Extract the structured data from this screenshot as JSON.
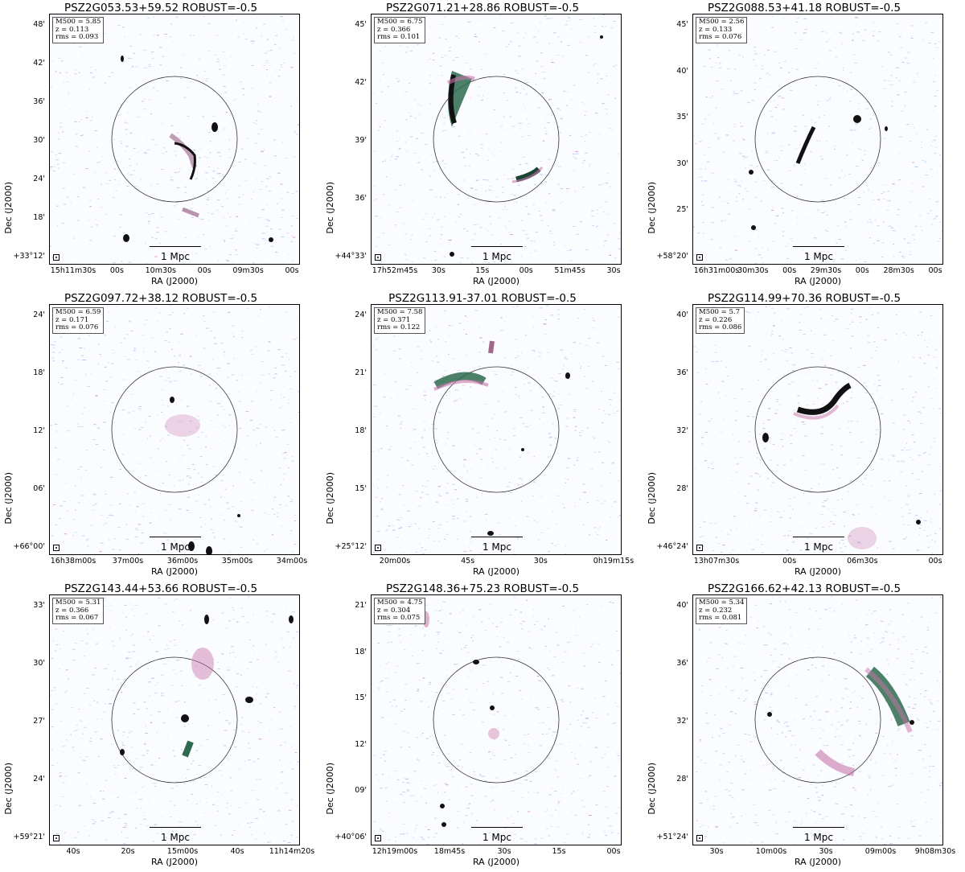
{
  "figure": {
    "common": {
      "xlabel": "RA (J2000)",
      "ylabel": "Dec (J2000)",
      "scalebar": "1 Mpc"
    },
    "panels": [
      {
        "title": "PSZ2G053.53+59.52 ROBUST=-0.5",
        "m500": "M500 = 5.85",
        "z": "z = 0.113",
        "rms": "rms = 0.093",
        "yticks": [
          "48'",
          "42'",
          "36'",
          "30'",
          "24'",
          "18'",
          "+33°12'"
        ],
        "xticks": [
          "15h11m30s",
          "00s",
          "10m30s",
          "00s",
          "09m30s",
          "00s"
        ]
      },
      {
        "title": "PSZ2G071.21+28.86 ROBUST=-0.5",
        "m500": "M500 = 6.75",
        "z": "z = 0.366",
        "rms": "rms = 0.101",
        "yticks": [
          "45'",
          "42'",
          "39'",
          "36'",
          "+44°33'"
        ],
        "xticks": [
          "17h52m45s",
          "30s",
          "15s",
          "00s",
          "51m45s",
          "30s"
        ]
      },
      {
        "title": "PSZ2G088.53+41.18 ROBUST=-0.5",
        "m500": "M500 = 2.56",
        "z": "z = 0.133",
        "rms": "rms = 0.076",
        "yticks": [
          "45'",
          "40'",
          "35'",
          "30'",
          "25'",
          "+58°20'"
        ],
        "xticks": [
          "16h31m00s",
          "30m30s",
          "00s",
          "29m30s",
          "00s",
          "28m30s",
          "00s"
        ]
      },
      {
        "title": "PSZ2G097.72+38.12 ROBUST=-0.5",
        "m500": "M500 = 6.59",
        "z": "z = 0.171",
        "rms": "rms = 0.076",
        "yticks": [
          "24'",
          "18'",
          "12'",
          "06'",
          "+66°00'"
        ],
        "xticks": [
          "16h38m00s",
          "37m00s",
          "36m00s",
          "35m00s",
          "34m00s"
        ]
      },
      {
        "title": "PSZ2G113.91-37.01 ROBUST=-0.5",
        "m500": "M500 = 7.58",
        "z": "z = 0.371",
        "rms": "rms = 0.122",
        "yticks": [
          "24'",
          "21'",
          "18'",
          "15'",
          "+25°12'"
        ],
        "xticks": [
          "20m00s",
          "45s",
          "30s",
          "0h19m15s"
        ]
      },
      {
        "title": "PSZ2G114.99+70.36 ROBUST=-0.5",
        "m500": "M500 = 5.7",
        "z": "z = 0.226",
        "rms": "rms = 0.086",
        "yticks": [
          "40'",
          "36'",
          "32'",
          "28'",
          "+46°24'"
        ],
        "xticks": [
          "13h07m30s",
          "00s",
          "06m30s",
          "00s"
        ]
      },
      {
        "title": "PSZ2G143.44+53.66 ROBUST=-0.5",
        "m500": "M500 = 5.31",
        "z": "z = 0.366",
        "rms": "rms = 0.067",
        "yticks": [
          "33'",
          "30'",
          "27'",
          "24'",
          "+59°21'"
        ],
        "xticks": [
          "40s",
          "20s",
          "15m00s",
          "40s",
          "11h14m20s"
        ]
      },
      {
        "title": "PSZ2G148.36+75.23 ROBUST=-0.5",
        "m500": "M500 = 4.75",
        "z": "z = 0.304",
        "rms": "rms = 0.075",
        "yticks": [
          "21'",
          "18'",
          "15'",
          "12'",
          "09'",
          "+40°06'"
        ],
        "xticks": [
          "12h19m00s",
          "18m45s",
          "30s",
          "15s",
          "00s"
        ]
      },
      {
        "title": "PSZ2G166.62+42.13 ROBUST=-0.5",
        "m500": "M500 = 5.34",
        "z": "z = 0.232",
        "rms": "rms = 0.081",
        "yticks": [
          "40'",
          "36'",
          "32'",
          "28'",
          "+51°24'"
        ],
        "xticks": [
          "30s",
          "10m00s",
          "30s",
          "09m00s",
          "9h08m30s"
        ]
      }
    ]
  }
}
